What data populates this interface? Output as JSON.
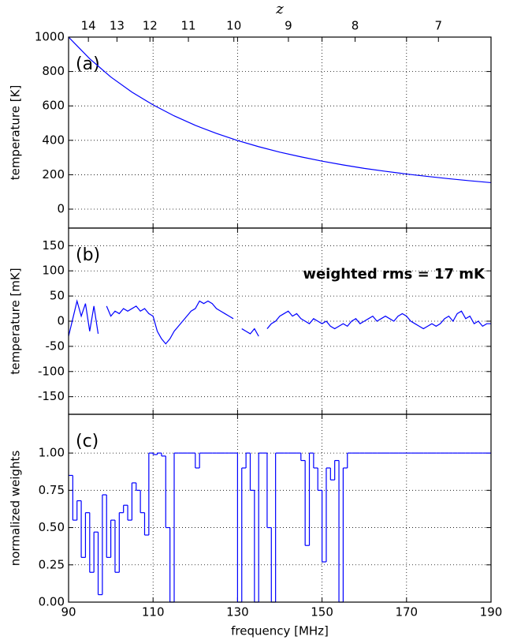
{
  "chart_data": [
    {
      "type": "line",
      "panel_label": "(a)",
      "ylabel": "temperature [K]",
      "x2label": "z",
      "x2ticks": [
        14,
        13,
        12,
        11,
        10,
        9,
        8,
        7
      ],
      "x": [
        90,
        95,
        100,
        105,
        110,
        115,
        120,
        125,
        130,
        135,
        140,
        145,
        150,
        155,
        160,
        165,
        170,
        175,
        180,
        185,
        190
      ],
      "values": [
        1000,
        874,
        768,
        680,
        606,
        542,
        487,
        440,
        399,
        363,
        331,
        304,
        279,
        257,
        237,
        220,
        204,
        190,
        177,
        165,
        154
      ],
      "color": "#0000ff",
      "xlim": [
        90,
        190
      ],
      "xticks": [
        90,
        110,
        130,
        150,
        170,
        190
      ],
      "ylim": [
        -110,
        1000
      ],
      "yticks": [
        0,
        200,
        400,
        600,
        800,
        1000
      ],
      "grid": true
    },
    {
      "type": "line",
      "panel_label": "(b)",
      "ylabel": "temperature [mK]",
      "annotation": "weighted rms = 17 mK",
      "x": [
        90,
        91,
        92,
        93,
        94,
        95,
        96,
        97,
        98,
        99,
        100,
        101,
        102,
        103,
        104,
        105,
        106,
        107,
        108,
        109,
        110,
        111,
        112,
        113,
        114,
        115,
        116,
        117,
        118,
        119,
        120,
        121,
        122,
        123,
        124,
        125,
        126,
        127,
        128,
        129,
        130,
        131,
        132,
        133,
        134,
        135,
        136,
        137,
        138,
        139,
        140,
        141,
        142,
        143,
        144,
        145,
        146,
        147,
        148,
        149,
        150,
        151,
        152,
        153,
        154,
        155,
        156,
        157,
        158,
        159,
        160,
        161,
        162,
        163,
        164,
        165,
        166,
        167,
        168,
        169,
        170,
        171,
        172,
        173,
        174,
        175,
        176,
        177,
        178,
        179,
        180,
        181,
        182,
        183,
        184,
        185,
        186,
        187,
        188,
        189,
        190
      ],
      "values": [
        -30,
        5,
        40,
        10,
        35,
        -20,
        30,
        -25,
        null,
        30,
        10,
        20,
        15,
        25,
        20,
        25,
        30,
        20,
        25,
        15,
        10,
        -20,
        -35,
        -45,
        -35,
        -20,
        -10,
        0,
        10,
        20,
        25,
        40,
        35,
        40,
        35,
        25,
        20,
        15,
        10,
        5,
        null,
        -15,
        -20,
        -25,
        -15,
        -30,
        null,
        -15,
        -5,
        0,
        10,
        15,
        20,
        10,
        15,
        5,
        0,
        -5,
        5,
        0,
        -5,
        0,
        -10,
        -15,
        -10,
        -5,
        -10,
        0,
        5,
        -5,
        0,
        5,
        10,
        0,
        5,
        10,
        5,
        0,
        10,
        15,
        10,
        0,
        -5,
        -10,
        -15,
        -10,
        -5,
        -10,
        -5,
        5,
        10,
        0,
        15,
        20,
        5,
        10,
        -5,
        0,
        -10,
        -5,
        -5
      ],
      "color": "#0000ff",
      "xlim": [
        90,
        190
      ],
      "xticks": [
        90,
        110,
        130,
        150,
        170,
        190
      ],
      "ylim": [
        -185,
        185
      ],
      "yticks": [
        -150,
        -100,
        -50,
        0,
        50,
        100,
        150
      ],
      "grid": true
    },
    {
      "type": "step",
      "panel_label": "(c)",
      "ylabel": "normalized weights",
      "xlabel": "frequency [MHz]",
      "x": [
        90,
        91,
        92,
        93,
        94,
        95,
        96,
        97,
        98,
        99,
        100,
        101,
        102,
        103,
        104,
        105,
        106,
        107,
        108,
        109,
        110,
        111,
        112,
        113,
        114,
        115,
        116,
        117,
        118,
        119,
        120,
        121,
        122,
        123,
        124,
        125,
        126,
        127,
        128,
        129,
        130,
        131,
        132,
        133,
        134,
        135,
        136,
        137,
        138,
        139,
        140,
        141,
        142,
        143,
        144,
        145,
        146,
        147,
        148,
        149,
        150,
        151,
        152,
        153,
        154,
        155,
        156,
        157,
        158,
        159,
        160,
        161,
        162,
        163,
        164,
        165,
        166,
        167,
        168,
        169,
        170,
        171,
        172,
        173,
        174,
        175,
        176,
        177,
        178,
        179,
        180,
        181,
        182,
        183,
        184,
        185,
        186,
        187,
        188,
        189,
        190
      ],
      "values": [
        0.85,
        0.55,
        0.68,
        0.3,
        0.6,
        0.2,
        0.47,
        0.05,
        0.72,
        0.3,
        0.55,
        0.2,
        0.6,
        0.65,
        0.55,
        0.8,
        0.75,
        0.6,
        0.45,
        1,
        0.99,
        1,
        0.98,
        0.5,
        0,
        1,
        1,
        1,
        1,
        1,
        0.9,
        1,
        1,
        1,
        1,
        1,
        1,
        1,
        1,
        1,
        0,
        0.9,
        1,
        0.75,
        0,
        1,
        1,
        0.5,
        0,
        1,
        1,
        1,
        1,
        1,
        1,
        0.95,
        0.38,
        1,
        0.9,
        0.75,
        0.27,
        0.9,
        0.82,
        0.95,
        0,
        0.9,
        1,
        1,
        1,
        1,
        1,
        1,
        1,
        1,
        1,
        1,
        1,
        1,
        1,
        1,
        1,
        1,
        1,
        1,
        1,
        1,
        1,
        1,
        1,
        1,
        1,
        1,
        1,
        1,
        1,
        1,
        1,
        1,
        1,
        1,
        1
      ],
      "color": "#0000ff",
      "xlim": [
        90,
        190
      ],
      "xticks": [
        90,
        110,
        130,
        150,
        170,
        190
      ],
      "ylim": [
        0,
        1.26
      ],
      "yticks": [
        {
          "value": 0,
          "label": "0.00"
        },
        {
          "value": 0.25,
          "label": "0.25"
        },
        {
          "value": 0.5,
          "label": "0.50"
        },
        {
          "value": 0.75,
          "label": "0.75"
        },
        {
          "value": 1,
          "label": "1.00"
        }
      ],
      "grid": true
    }
  ]
}
